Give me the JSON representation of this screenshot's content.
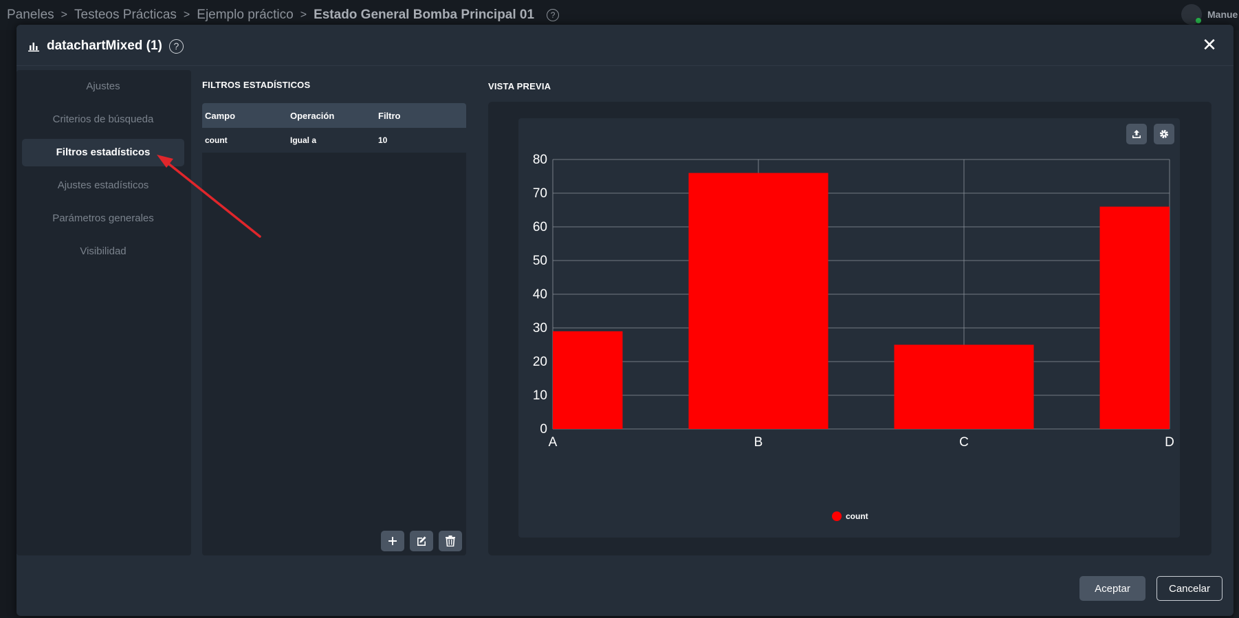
{
  "breadcrumb": {
    "items": [
      "Paneles",
      "Testeos Prácticas",
      "Ejemplo práctico"
    ],
    "current": "Estado General Bomba Principal 01",
    "separator": ">",
    "help": "?"
  },
  "user": {
    "name": "Manue"
  },
  "modal": {
    "title": "datachartMixed (1)",
    "help": "?",
    "close": "✕"
  },
  "sidebar": {
    "items": [
      {
        "label": "Ajustes"
      },
      {
        "label": "Criterios de búsqueda"
      },
      {
        "label": "Filtros estadísticos"
      },
      {
        "label": "Ajustes estadísticos"
      },
      {
        "label": "Parámetros generales"
      },
      {
        "label": "Visibilidad"
      }
    ],
    "active_index": 2
  },
  "filters": {
    "title": "FILTROS ESTADÍSTICOS",
    "columns": [
      "Campo",
      "Operación",
      "Filtro"
    ],
    "rows": [
      {
        "campo": "count",
        "operacion": "Igual a",
        "filtro": "10"
      }
    ],
    "buttons": [
      "add-icon",
      "edit-icon",
      "trash-icon"
    ]
  },
  "preview": {
    "title": "VISTA PREVIA",
    "tools": [
      "export-icon",
      "gear-icon"
    ]
  },
  "chart_data": {
    "type": "bar",
    "categories": [
      "A",
      "B",
      "C",
      "D"
    ],
    "series": [
      {
        "name": "count",
        "values": [
          29,
          76,
          25,
          66
        ],
        "color": "#ff0000"
      }
    ],
    "ylim": [
      0,
      80
    ],
    "yticks": [
      0,
      10,
      20,
      30,
      40,
      50,
      60,
      70,
      80
    ],
    "grid": true,
    "legend_position": "bottom-center"
  },
  "footer": {
    "accept": "Aceptar",
    "cancel": "Cancelar"
  },
  "colors": {
    "accent_red": "#ff0000",
    "annotation_arrow": "#e0262b",
    "modal_bg": "#252e39",
    "panel_bg": "#1e252e"
  }
}
